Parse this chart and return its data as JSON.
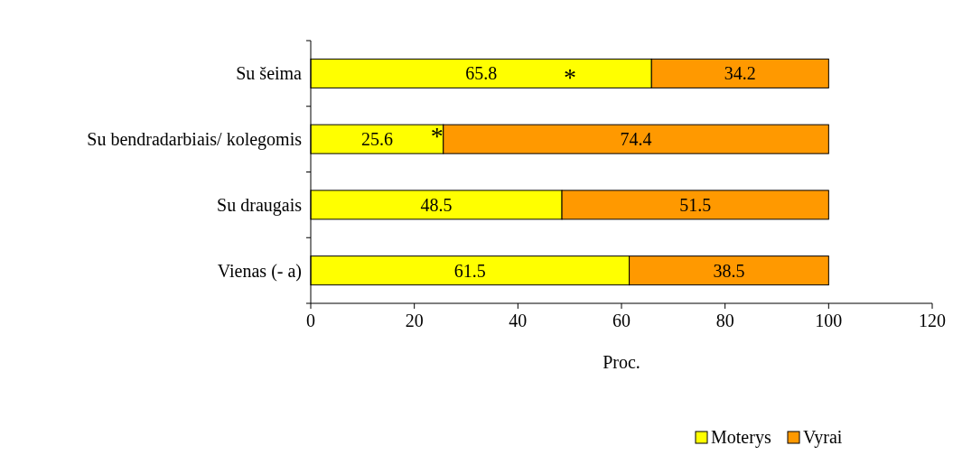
{
  "chart_data": {
    "type": "bar",
    "orientation": "horizontal",
    "stacked": true,
    "xlabel": "Proc.",
    "categories": [
      "Su šeima",
      "Su bendradarbiais/ kolegomis",
      "Su draugais",
      "Vienas (- a)"
    ],
    "series": [
      {
        "name": "Moterys",
        "color": "#ffff00",
        "values": [
          65.8,
          25.6,
          48.5,
          61.5
        ]
      },
      {
        "name": "Vyrai",
        "color": "#ff9900",
        "values": [
          34.2,
          74.4,
          51.5,
          38.5
        ]
      }
    ],
    "xlim": [
      0,
      120
    ],
    "xticks": [
      0,
      20,
      40,
      60,
      80,
      100,
      120
    ],
    "data_labels": true,
    "legend": "bottom",
    "grid": false,
    "annotations": [
      "*",
      {
        "text": "*",
        "x": 25.6,
        "y": "Su bendradarbiais/ kolegomis"
      }
    ]
  }
}
